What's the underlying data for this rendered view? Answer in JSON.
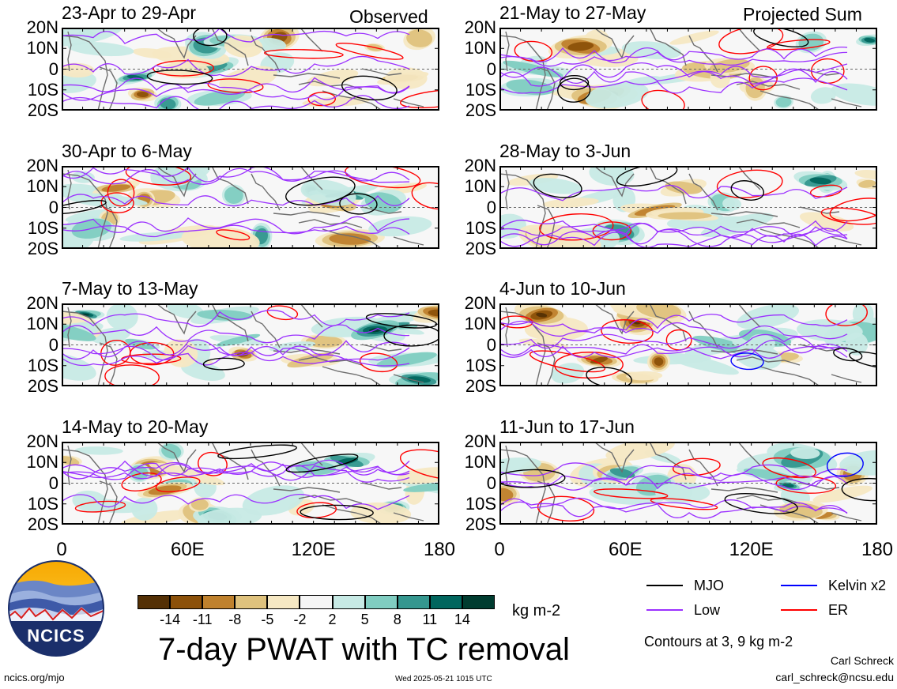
{
  "headers": {
    "left": "Observed",
    "right": "Projected Sum"
  },
  "panels": [
    {
      "title": "23-Apr to 29-Apr",
      "column": "left",
      "row": 0,
      "seed": 11
    },
    {
      "title": "30-Apr to 6-May",
      "column": "left",
      "row": 1,
      "seed": 23
    },
    {
      "title": "7-May to 13-May",
      "column": "left",
      "row": 2,
      "seed": 37
    },
    {
      "title": "14-May to 20-May",
      "column": "left",
      "row": 3,
      "seed": 41
    },
    {
      "title": "21-May to 27-May",
      "column": "right",
      "row": 0,
      "seed": 53
    },
    {
      "title": "28-May to 3-Jun",
      "column": "right",
      "row": 1,
      "seed": 67
    },
    {
      "title": "4-Jun to 10-Jun",
      "column": "right",
      "row": 2,
      "seed": 71
    },
    {
      "title": "11-Jun to 17-Jun",
      "column": "right",
      "row": 3,
      "seed": 89
    }
  ],
  "y_axis_labels": [
    "20N",
    "10N",
    "0",
    "10S",
    "20S"
  ],
  "x_axis_labels": [
    "0",
    "60E",
    "120E",
    "180"
  ],
  "colorbar": {
    "colors": [
      "#543005",
      "#8c510a",
      "#bf812d",
      "#dfc27d",
      "#f6e8c3",
      "#f5f5f5",
      "#c7eae5",
      "#80cdc1",
      "#35978f",
      "#01665e",
      "#003c30"
    ],
    "labels": [
      "-14",
      "-11",
      "-8",
      "-5",
      "-2",
      "2",
      "5",
      "8",
      "11",
      "14"
    ],
    "unit": "kg m-2"
  },
  "legend": [
    {
      "label": "MJO",
      "color": "#000000"
    },
    {
      "label": "Kelvin x2",
      "color": "#0000ff"
    },
    {
      "label": "Low",
      "color": "#9b30ff"
    },
    {
      "label": "ER",
      "color": "#ff0000"
    }
  ],
  "title": "7-day PWAT with TC removal",
  "contour_note": "Contours at 3, 9 kg m-2",
  "author": "Carl Schreck",
  "email": "carl_schreck@ncsu.edu",
  "website": "ncics.org/mjo",
  "timestamp": "Wed 2025-05-21 1015 UTC",
  "logo_text": "NCICS"
}
